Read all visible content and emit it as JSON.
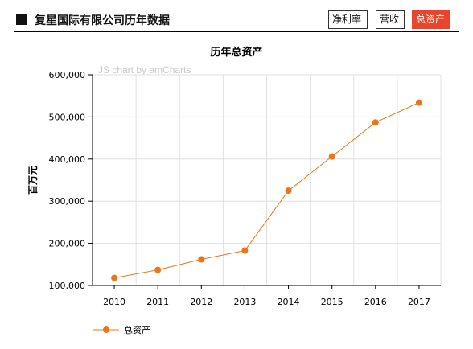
{
  "header": {
    "title": "复星国际有限公司历年数据",
    "tabs": [
      {
        "label": "净利率",
        "active": false
      },
      {
        "label": "营收",
        "active": false
      },
      {
        "label": "总资产",
        "active": true
      }
    ]
  },
  "watermark": "JS chart by amCharts",
  "colors": {
    "series": "#f0731a",
    "active_tab": "#e8452c",
    "grid": "#e0e0e0"
  },
  "chart_data": {
    "type": "line",
    "title": "历年总资产",
    "xlabel": "",
    "ylabel": "百万元",
    "categories": [
      "2010",
      "2011",
      "2012",
      "2013",
      "2014",
      "2015",
      "2016",
      "2017"
    ],
    "series": [
      {
        "name": "总资产",
        "values": [
          118000,
          137000,
          162000,
          183000,
          325000,
          406000,
          487000,
          534000
        ]
      }
    ],
    "ylim": [
      100000,
      600000
    ],
    "yticks": [
      100000,
      200000,
      300000,
      400000,
      500000,
      600000
    ],
    "ytick_labels": [
      "100,000",
      "200,000",
      "300,000",
      "400,000",
      "500,000",
      "600,000"
    ],
    "grid": true,
    "legend_position": "bottom-left"
  }
}
